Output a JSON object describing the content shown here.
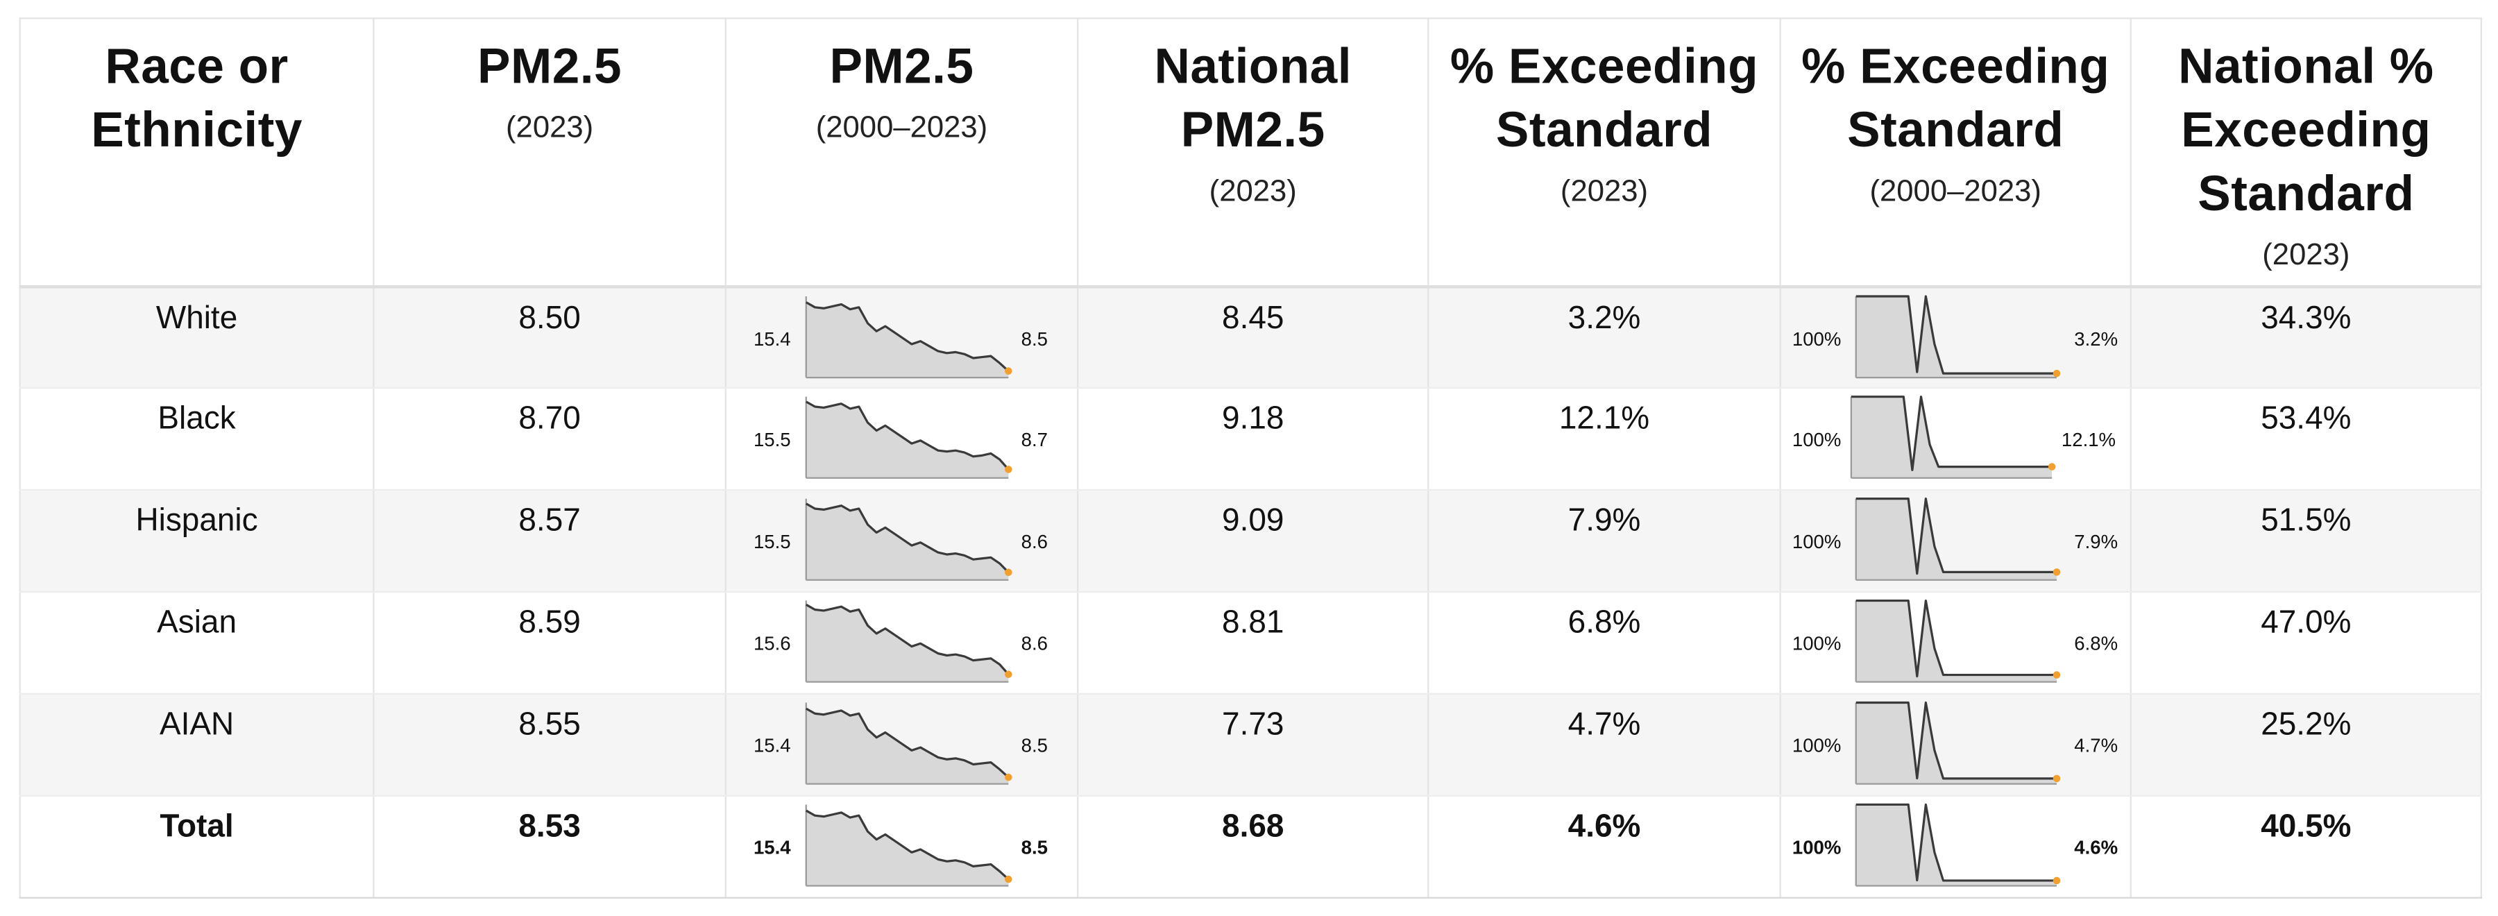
{
  "colors": {
    "spark_fill": "#d8d8d8",
    "spark_line": "#3a3a3a",
    "spark_end_dot": "#f0a030",
    "zebra_row": "#f5f5f5"
  },
  "headers": [
    {
      "title_lines": [
        "Race or",
        "Ethnicity"
      ],
      "sub": ""
    },
    {
      "title_lines": [
        "PM2.5"
      ],
      "sub": "(2023)"
    },
    {
      "title_lines": [
        "PM2.5"
      ],
      "sub": "(2000–2023)"
    },
    {
      "title_lines": [
        "National",
        "PM2.5"
      ],
      "sub": "(2023)"
    },
    {
      "title_lines": [
        "% Exceeding",
        "Standard"
      ],
      "sub": "(2023)"
    },
    {
      "title_lines": [
        "% Exceeding",
        "Standard"
      ],
      "sub": "(2000–2023)"
    },
    {
      "title_lines": [
        "National %",
        "Exceeding",
        "Standard"
      ],
      "sub": "(2023)"
    }
  ],
  "rows": [
    {
      "group": "White",
      "pm25": "8.50",
      "pm_spark_start": "15.4",
      "pm_spark_end": "8.5",
      "pm_series": [
        15.4,
        14.9,
        14.8,
        15.0,
        15.2,
        14.7,
        14.9,
        13.3,
        12.5,
        13.0,
        12.4,
        11.8,
        11.2,
        11.5,
        11.0,
        10.5,
        10.3,
        10.4,
        10.2,
        9.8,
        9.9,
        10.0,
        9.3,
        8.5
      ],
      "national_pm25": "8.45",
      "pct_exceeding": "3.2%",
      "exc_spark_start": "100%",
      "exc_spark_end": "3.2%",
      "exc_series": [
        100,
        100,
        100,
        100,
        100,
        100,
        100,
        5,
        100,
        40,
        3.2,
        3.2,
        3.2,
        3.2,
        3.2,
        3.2,
        3.2,
        3.2,
        3.2,
        3.2,
        3.2,
        3.2,
        3.2,
        3.2
      ],
      "national_pct_exceeding": "34.3%"
    },
    {
      "group": "Black",
      "pm25": "8.70",
      "pm_spark_start": "15.5",
      "pm_spark_end": "8.7",
      "pm_series": [
        15.5,
        15.0,
        14.9,
        15.1,
        15.3,
        14.8,
        15.0,
        13.4,
        12.6,
        13.1,
        12.5,
        11.9,
        11.3,
        11.6,
        11.1,
        10.6,
        10.5,
        10.6,
        10.4,
        10.0,
        10.1,
        10.3,
        9.7,
        8.7
      ],
      "national_pm25": "9.18",
      "pct_exceeding": "12.1%",
      "exc_spark_start": "100%",
      "exc_spark_end": "12.1%",
      "exc_series": [
        100,
        100,
        100,
        100,
        100,
        100,
        100,
        8,
        100,
        40,
        12.1,
        12.1,
        12.1,
        12.1,
        12.1,
        12.1,
        12.1,
        12.1,
        12.1,
        12.1,
        12.1,
        12.1,
        12.1,
        12.1
      ],
      "national_pct_exceeding": "53.4%"
    },
    {
      "group": "Hispanic",
      "pm25": "8.57",
      "pm_spark_start": "15.5",
      "pm_spark_end": "8.6",
      "pm_series": [
        15.5,
        15.0,
        14.9,
        15.1,
        15.3,
        14.8,
        15.0,
        13.4,
        12.6,
        13.1,
        12.5,
        11.9,
        11.3,
        11.6,
        11.1,
        10.6,
        10.4,
        10.5,
        10.3,
        9.9,
        10.0,
        10.1,
        9.5,
        8.6
      ],
      "national_pm25": "9.09",
      "pct_exceeding": "7.9%",
      "exc_spark_start": "100%",
      "exc_spark_end": "7.9%",
      "exc_series": [
        100,
        100,
        100,
        100,
        100,
        100,
        100,
        6,
        100,
        40,
        7.9,
        7.9,
        7.9,
        7.9,
        7.9,
        7.9,
        7.9,
        7.9,
        7.9,
        7.9,
        7.9,
        7.9,
        7.9,
        7.9
      ],
      "national_pct_exceeding": "51.5%"
    },
    {
      "group": "Asian",
      "pm25": "8.59",
      "pm_spark_start": "15.6",
      "pm_spark_end": "8.6",
      "pm_series": [
        15.6,
        15.1,
        15.0,
        15.2,
        15.4,
        14.9,
        15.1,
        13.5,
        12.7,
        13.2,
        12.6,
        12.0,
        11.4,
        11.7,
        11.2,
        10.7,
        10.5,
        10.6,
        10.4,
        10.0,
        10.1,
        10.2,
        9.6,
        8.6
      ],
      "national_pm25": "8.81",
      "pct_exceeding": "6.8%",
      "exc_spark_start": "100%",
      "exc_spark_end": "6.8%",
      "exc_series": [
        100,
        100,
        100,
        100,
        100,
        100,
        100,
        5,
        100,
        40,
        6.8,
        6.8,
        6.8,
        6.8,
        6.8,
        6.8,
        6.8,
        6.8,
        6.8,
        6.8,
        6.8,
        6.8,
        6.8,
        6.8
      ],
      "national_pct_exceeding": "47.0%"
    },
    {
      "group": "AIAN",
      "pm25": "8.55",
      "pm_spark_start": "15.4",
      "pm_spark_end": "8.5",
      "pm_series": [
        15.4,
        14.9,
        14.8,
        15.0,
        15.2,
        14.7,
        14.9,
        13.3,
        12.5,
        13.0,
        12.4,
        11.8,
        11.2,
        11.5,
        11.0,
        10.5,
        10.3,
        10.4,
        10.2,
        9.8,
        9.9,
        10.0,
        9.3,
        8.5
      ],
      "national_pm25": "7.73",
      "pct_exceeding": "4.7%",
      "exc_spark_start": "100%",
      "exc_spark_end": "4.7%",
      "exc_series": [
        100,
        100,
        100,
        100,
        100,
        100,
        100,
        5,
        100,
        40,
        4.7,
        4.7,
        4.7,
        4.7,
        4.7,
        4.7,
        4.7,
        4.7,
        4.7,
        4.7,
        4.7,
        4.7,
        4.7,
        4.7
      ],
      "national_pct_exceeding": "25.2%"
    },
    {
      "group": "Total",
      "pm25": "8.53",
      "pm_spark_start": "15.4",
      "pm_spark_end": "8.5",
      "pm_series": [
        15.4,
        14.9,
        14.8,
        15.0,
        15.2,
        14.7,
        14.9,
        13.3,
        12.5,
        13.0,
        12.4,
        11.8,
        11.2,
        11.5,
        11.0,
        10.5,
        10.3,
        10.4,
        10.2,
        9.8,
        9.9,
        10.0,
        9.3,
        8.5
      ],
      "national_pm25": "8.68",
      "pct_exceeding": "4.6%",
      "exc_spark_start": "100%",
      "exc_spark_end": "4.6%",
      "exc_series": [
        100,
        100,
        100,
        100,
        100,
        100,
        100,
        5,
        100,
        40,
        4.6,
        4.6,
        4.6,
        4.6,
        4.6,
        4.6,
        4.6,
        4.6,
        4.6,
        4.6,
        4.6,
        4.6,
        4.6,
        4.6
      ],
      "national_pct_exceeding": "40.5%"
    }
  ]
}
